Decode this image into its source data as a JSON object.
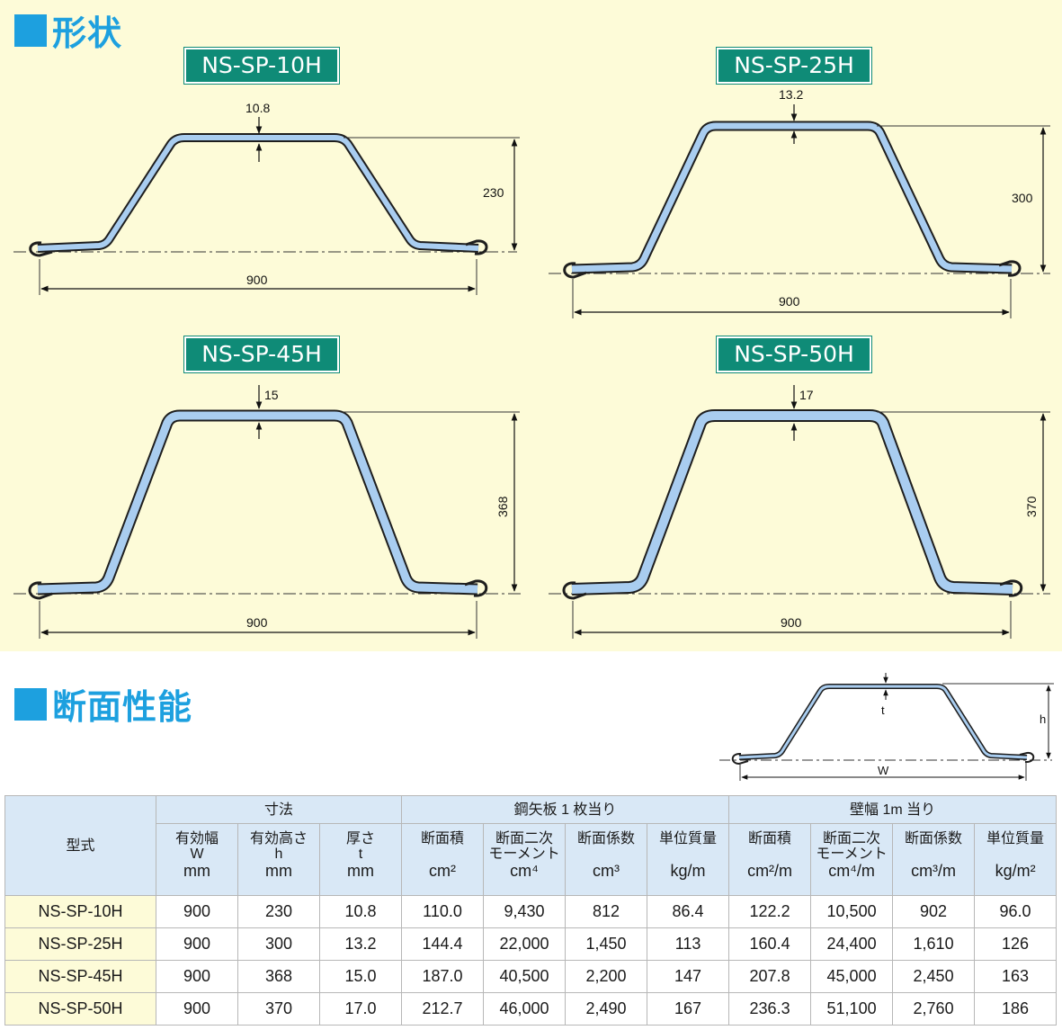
{
  "sections": {
    "shape": "形状",
    "performance": "断面性能"
  },
  "diagrams": [
    {
      "model": "NS-SP-10H",
      "thickness": "10.8",
      "height": "230",
      "width": "900"
    },
    {
      "model": "NS-SP-25H",
      "thickness": "13.2",
      "height": "300",
      "width": "900"
    },
    {
      "model": "NS-SP-45H",
      "thickness": "15",
      "height": "368",
      "width": "900"
    },
    {
      "model": "NS-SP-50H",
      "thickness": "17",
      "height": "370",
      "width": "900"
    }
  ],
  "legend_diagram": {
    "t": "t",
    "h": "h",
    "w": "W"
  },
  "colors": {
    "section_blue": "#1da0df",
    "badge_green": "#0f8b77",
    "panel_bg": "#fdfbd8",
    "pile_fill": "#a9cdf0",
    "header_bg": "#d9e8f6"
  },
  "table": {
    "header": {
      "model": "型式",
      "group_dimensions": "寸法",
      "group_per_sheet": "鋼矢板 1 枚当り",
      "group_per_wall": "壁幅 1m 当り",
      "columns": [
        {
          "label": "有効幅",
          "sym": "W",
          "unit": "mm"
        },
        {
          "label": "有効高さ",
          "sym": "h",
          "unit": "mm"
        },
        {
          "label": "厚さ",
          "sym": "t",
          "unit": "mm"
        },
        {
          "label": "断面積",
          "sym": "",
          "unit": "cm²"
        },
        {
          "label": "断面二次",
          "sym": "モーメント",
          "unit": "cm⁴"
        },
        {
          "label": "断面係数",
          "sym": "",
          "unit": "cm³"
        },
        {
          "label": "単位質量",
          "sym": "",
          "unit": "kg/m"
        },
        {
          "label": "断面積",
          "sym": "",
          "unit": "cm²/m"
        },
        {
          "label": "断面二次",
          "sym": "モーメント",
          "unit": "cm⁴/m"
        },
        {
          "label": "断面係数",
          "sym": "",
          "unit": "cm³/m"
        },
        {
          "label": "単位質量",
          "sym": "",
          "unit": "kg/m²"
        }
      ]
    },
    "rows": [
      [
        "NS-SP-10H",
        "900",
        "230",
        "10.8",
        "110.0",
        "9,430",
        "812",
        "86.4",
        "122.2",
        "10,500",
        "902",
        "96.0"
      ],
      [
        "NS-SP-25H",
        "900",
        "300",
        "13.2",
        "144.4",
        "22,000",
        "1,450",
        "113",
        "160.4",
        "24,400",
        "1,610",
        "126"
      ],
      [
        "NS-SP-45H",
        "900",
        "368",
        "15.0",
        "187.0",
        "40,500",
        "2,200",
        "147",
        "207.8",
        "45,000",
        "2,450",
        "163"
      ],
      [
        "NS-SP-50H",
        "900",
        "370",
        "17.0",
        "212.7",
        "46,000",
        "2,490",
        "167",
        "236.3",
        "51,100",
        "2,760",
        "186"
      ]
    ]
  }
}
